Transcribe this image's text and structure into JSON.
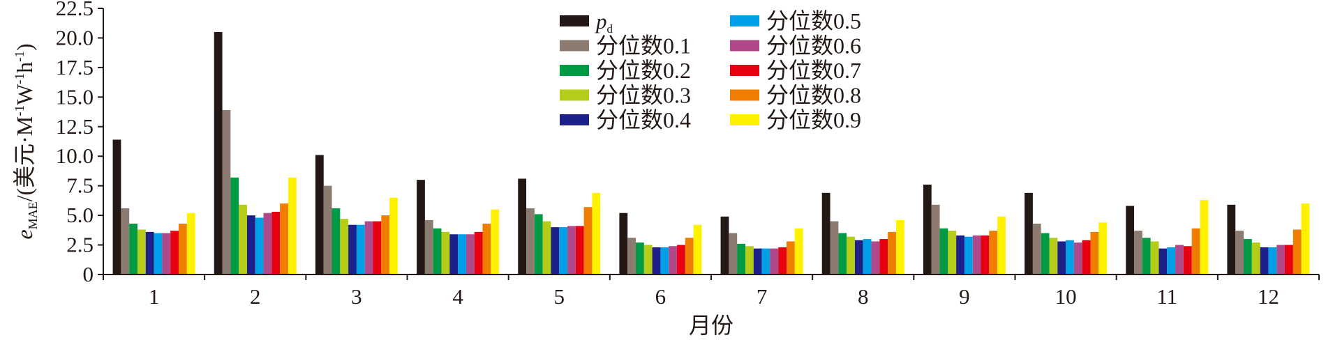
{
  "chart_data": {
    "type": "bar",
    "xlabel": "月份",
    "ylabel_main": "e",
    "ylabel_sub": "MAE",
    "ylabel_unit": "/(美元·M",
    "ylabel_unit_sup1": "-1",
    "ylabel_unit_w": "W",
    "ylabel_unit_sup2": "-1",
    "ylabel_unit_h": "h",
    "ylabel_unit_sup3": "-1",
    "ylabel_unit_close": ")",
    "ylim": [
      0,
      22.5
    ],
    "yticks": [
      "0",
      "2.5",
      "5.0",
      "7.5",
      "10.0",
      "12.5",
      "15.0",
      "17.5",
      "20.0",
      "22.5"
    ],
    "categories": [
      "1",
      "2",
      "3",
      "4",
      "5",
      "6",
      "7",
      "8",
      "9",
      "10",
      "11",
      "12"
    ],
    "legend_placement": "top-center, two columns",
    "series": [
      {
        "name": "p",
        "name_sub": "d",
        "color": "#231815",
        "values": [
          11.4,
          20.5,
          10.1,
          8.0,
          8.1,
          5.2,
          4.9,
          6.9,
          7.6,
          6.9,
          5.8,
          5.9
        ]
      },
      {
        "name": "分位数0.1",
        "color": "#8b7b70",
        "values": [
          5.6,
          13.9,
          7.5,
          4.6,
          5.6,
          3.1,
          3.5,
          4.5,
          5.9,
          4.3,
          3.7,
          3.7
        ]
      },
      {
        "name": "分位数0.2",
        "color": "#009944",
        "values": [
          4.3,
          8.2,
          5.6,
          3.9,
          5.1,
          2.7,
          2.6,
          3.5,
          3.9,
          3.5,
          3.1,
          3.0
        ]
      },
      {
        "name": "分位数0.3",
        "color": "#b5cc18",
        "values": [
          3.8,
          5.9,
          4.7,
          3.6,
          4.5,
          2.5,
          2.4,
          3.2,
          3.7,
          3.1,
          2.8,
          2.7
        ]
      },
      {
        "name": "分位数0.4",
        "color": "#1d2088",
        "values": [
          3.6,
          5.0,
          4.2,
          3.4,
          4.0,
          2.3,
          2.2,
          2.9,
          3.3,
          2.8,
          2.2,
          2.3
        ]
      },
      {
        "name": "分位数0.5",
        "color": "#00a0e9",
        "values": [
          3.5,
          4.8,
          4.2,
          3.4,
          4.0,
          2.3,
          2.2,
          3.0,
          3.2,
          2.9,
          2.3,
          2.3
        ]
      },
      {
        "name": "分位数0.6",
        "color": "#b0498a",
        "values": [
          3.5,
          5.2,
          4.5,
          3.4,
          4.1,
          2.4,
          2.2,
          2.8,
          3.3,
          2.7,
          2.5,
          2.5
        ]
      },
      {
        "name": "分位数0.7",
        "color": "#e60012",
        "values": [
          3.7,
          5.3,
          4.5,
          3.6,
          4.1,
          2.5,
          2.3,
          3.0,
          3.3,
          2.9,
          2.4,
          2.5
        ]
      },
      {
        "name": "分位数0.8",
        "color": "#ee7d00",
        "values": [
          4.3,
          6.0,
          5.0,
          4.3,
          5.7,
          3.1,
          2.8,
          3.6,
          3.7,
          3.6,
          3.9,
          3.8
        ]
      },
      {
        "name": "分位数0.9",
        "color": "#fff100",
        "values": [
          5.2,
          8.2,
          6.5,
          5.5,
          6.9,
          4.2,
          3.9,
          4.6,
          4.9,
          4.4,
          6.3,
          6.0
        ]
      }
    ]
  }
}
